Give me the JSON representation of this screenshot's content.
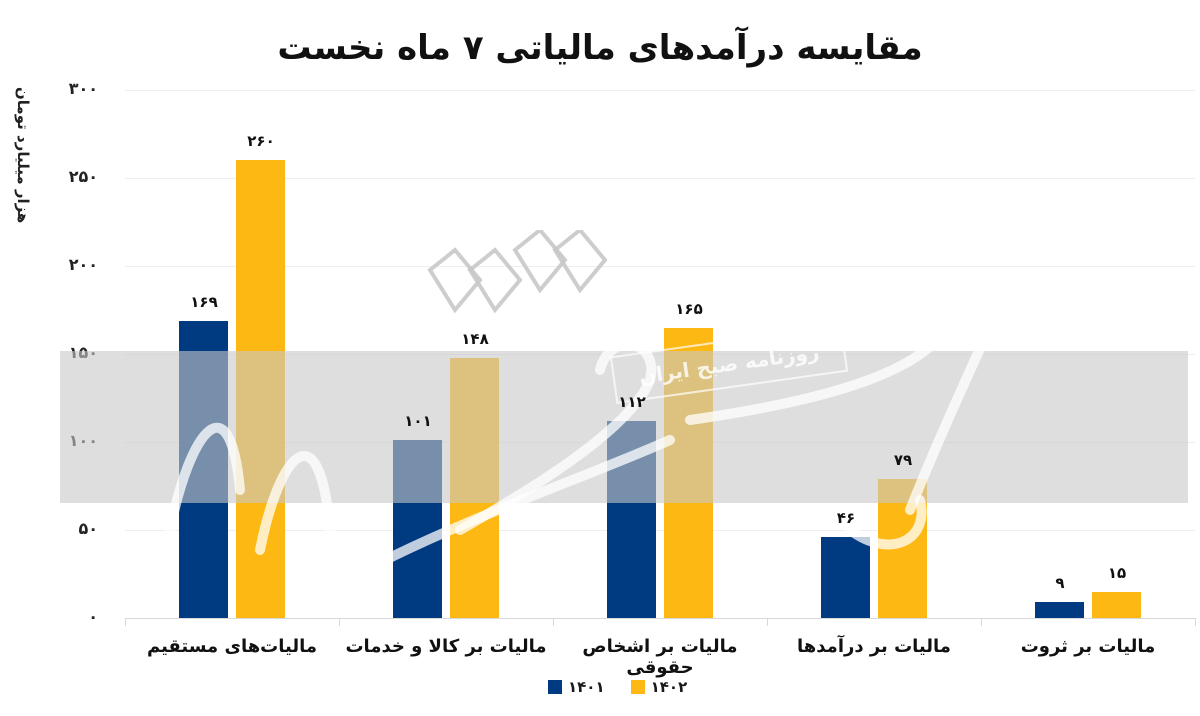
{
  "title": "مقایسه درآمدهای مالیاتی ۷ ماه نخست",
  "ylabel": "هزار میلیارد تومان",
  "yticks": [
    "۰",
    "۵۰",
    "۱۰۰",
    "۱۵۰",
    "۲۰۰",
    "۲۵۰",
    "۳۰۰"
  ],
  "watermark": {
    "box_text": "روزنامه صبح ایران",
    "logo_text": "دنیای اقتصاد"
  },
  "colors": {
    "1401": "#003A80",
    "1402": "#FDB813",
    "band": "#D9D9D9"
  },
  "legend": [
    {
      "label": "۱۴۰۱",
      "color": "#003A80"
    },
    {
      "label": "۱۴۰۲",
      "color": "#FDB813"
    }
  ],
  "categories": [
    {
      "label": "مالیات‌های مستقیم",
      "v1401": "۱۶۹",
      "v1402": "۲۶۰"
    },
    {
      "label": "مالیات بر کالا و خدمات",
      "v1401": "۱۰۱",
      "v1402": "۱۴۸"
    },
    {
      "label": "مالیات بر اشخاص حقوقی",
      "v1401": "۱۱۲",
      "v1402": "۱۶۵"
    },
    {
      "label": "مالیات بر درآمدها",
      "v1401": "۴۶",
      "v1402": "۷۹"
    },
    {
      "label": "مالیات بر ثروت",
      "v1401": "۹",
      "v1402": "۱۵"
    }
  ],
  "chart_data": {
    "type": "bar",
    "title": "مقایسه درآمدهای مالیاتی ۷ ماه نخست",
    "xlabel": "",
    "ylabel": "هزار میلیارد تومان",
    "ylim": [
      0,
      300
    ],
    "yticks": [
      0,
      50,
      100,
      150,
      200,
      250,
      300
    ],
    "grid": true,
    "legend_position": "bottom",
    "categories": [
      "مالیات‌های مستقیم",
      "مالیات بر کالا و خدمات",
      "مالیات بر اشخاص حقوقی",
      "مالیات بر درآمدها",
      "مالیات بر ثروت"
    ],
    "series": [
      {
        "name": "۱۴۰۱",
        "color": "#003A80",
        "values": [
          169,
          101,
          112,
          46,
          9
        ]
      },
      {
        "name": "۱۴۰۲",
        "color": "#FDB813",
        "values": [
          260,
          148,
          165,
          79,
          15
        ]
      }
    ]
  }
}
